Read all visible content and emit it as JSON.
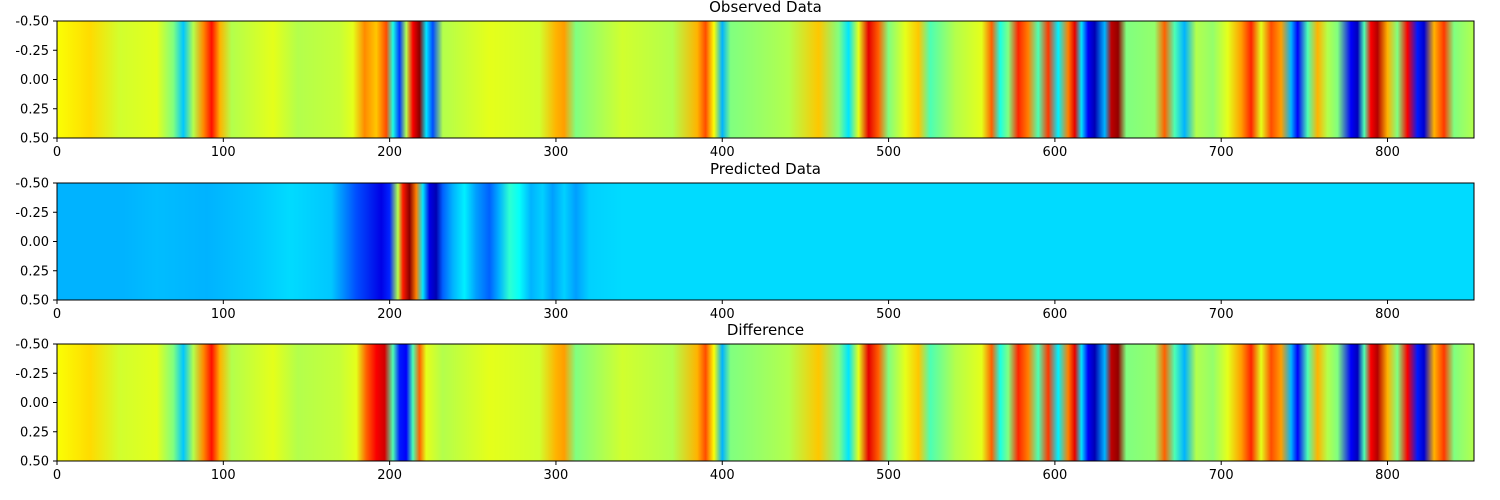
{
  "chart_data": [
    {
      "type": "heatmap",
      "title": "Observed Data",
      "colormap": "jet",
      "xlim": [
        0,
        852
      ],
      "ylim": [
        0.5,
        -0.5
      ],
      "xticks": [
        0,
        100,
        200,
        300,
        400,
        500,
        600,
        700,
        800
      ],
      "yticks": [
        -0.5,
        -0.25,
        0.0,
        0.25,
        0.5
      ],
      "ytick_labels": [
        "-0.50",
        "-0.25",
        "0.00",
        "0.25",
        "0.50"
      ],
      "bands": [
        [
          0,
          0.62
        ],
        [
          20,
          0.66
        ],
        [
          38,
          0.58
        ],
        [
          60,
          0.6
        ],
        [
          70,
          0.5
        ],
        [
          76,
          0.32
        ],
        [
          82,
          0.55
        ],
        [
          88,
          0.74
        ],
        [
          93,
          0.86
        ],
        [
          98,
          0.7
        ],
        [
          105,
          0.55
        ],
        [
          130,
          0.6
        ],
        [
          145,
          0.55
        ],
        [
          170,
          0.57
        ],
        [
          178,
          0.6
        ],
        [
          185,
          0.74
        ],
        [
          192,
          0.68
        ],
        [
          198,
          0.8
        ],
        [
          202,
          0.4
        ],
        [
          206,
          0.18
        ],
        [
          210,
          0.55
        ],
        [
          214,
          0.88
        ],
        [
          218,
          0.99
        ],
        [
          222,
          0.35
        ],
        [
          226,
          0.2
        ],
        [
          232,
          0.55
        ],
        [
          260,
          0.6
        ],
        [
          290,
          0.58
        ],
        [
          300,
          0.7
        ],
        [
          305,
          0.72
        ],
        [
          312,
          0.5
        ],
        [
          340,
          0.58
        ],
        [
          370,
          0.55
        ],
        [
          385,
          0.7
        ],
        [
          390,
          0.8
        ],
        [
          395,
          0.62
        ],
        [
          400,
          0.3
        ],
        [
          405,
          0.5
        ],
        [
          440,
          0.55
        ],
        [
          458,
          0.68
        ],
        [
          470,
          0.5
        ],
        [
          476,
          0.35
        ],
        [
          482,
          0.6
        ],
        [
          488,
          0.9
        ],
        [
          494,
          0.78
        ],
        [
          500,
          0.5
        ],
        [
          510,
          0.6
        ],
        [
          518,
          0.68
        ],
        [
          525,
          0.45
        ],
        [
          540,
          0.55
        ],
        [
          556,
          0.6
        ],
        [
          562,
          0.78
        ],
        [
          567,
          0.4
        ],
        [
          572,
          0.5
        ],
        [
          578,
          0.84
        ],
        [
          584,
          0.75
        ],
        [
          590,
          0.45
        ],
        [
          596,
          0.82
        ],
        [
          602,
          0.36
        ],
        [
          608,
          0.75
        ],
        [
          612,
          0.9
        ],
        [
          616,
          0.35
        ],
        [
          620,
          0.12
        ],
        [
          624,
          0.05
        ],
        [
          630,
          0.3
        ],
        [
          634,
          0.94
        ],
        [
          638,
          0.98
        ],
        [
          643,
          0.5
        ],
        [
          660,
          0.52
        ],
        [
          666,
          0.78
        ],
        [
          672,
          0.45
        ],
        [
          678,
          0.3
        ],
        [
          685,
          0.55
        ],
        [
          695,
          0.52
        ],
        [
          704,
          0.6
        ],
        [
          712,
          0.72
        ],
        [
          718,
          0.84
        ],
        [
          724,
          0.6
        ],
        [
          730,
          0.8
        ],
        [
          736,
          0.72
        ],
        [
          742,
          0.3
        ],
        [
          746,
          0.12
        ],
        [
          752,
          0.45
        ],
        [
          758,
          0.7
        ],
        [
          764,
          0.55
        ],
        [
          770,
          0.5
        ],
        [
          778,
          0.12
        ],
        [
          782,
          0.06
        ],
        [
          786,
          0.45
        ],
        [
          790,
          0.88
        ],
        [
          794,
          0.95
        ],
        [
          800,
          0.7
        ],
        [
          806,
          0.5
        ],
        [
          812,
          0.88
        ],
        [
          818,
          0.15
        ],
        [
          822,
          0.08
        ],
        [
          828,
          0.7
        ],
        [
          834,
          0.82
        ],
        [
          840,
          0.5
        ],
        [
          852,
          0.55
        ]
      ]
    },
    {
      "type": "heatmap",
      "title": "Predicted Data",
      "colormap": "jet",
      "xlim": [
        0,
        852
      ],
      "ylim": [
        0.5,
        -0.5
      ],
      "xticks": [
        0,
        100,
        200,
        300,
        400,
        500,
        600,
        700,
        800
      ],
      "yticks": [
        -0.5,
        -0.25,
        0.0,
        0.25,
        0.5
      ],
      "ytick_labels": [
        "-0.50",
        "-0.25",
        "0.00",
        "0.25",
        "0.50"
      ],
      "bands": [
        [
          0,
          0.3
        ],
        [
          40,
          0.3
        ],
        [
          60,
          0.31
        ],
        [
          90,
          0.3
        ],
        [
          120,
          0.32
        ],
        [
          140,
          0.34
        ],
        [
          165,
          0.32
        ],
        [
          180,
          0.2
        ],
        [
          195,
          0.1
        ],
        [
          200,
          0.16
        ],
        [
          205,
          0.55
        ],
        [
          208,
          0.85
        ],
        [
          212,
          0.99
        ],
        [
          216,
          0.75
        ],
        [
          220,
          0.35
        ],
        [
          224,
          0.1
        ],
        [
          228,
          0.05
        ],
        [
          232,
          0.22
        ],
        [
          238,
          0.3
        ],
        [
          245,
          0.36
        ],
        [
          252,
          0.28
        ],
        [
          260,
          0.22
        ],
        [
          266,
          0.3
        ],
        [
          272,
          0.42
        ],
        [
          278,
          0.38
        ],
        [
          285,
          0.3
        ],
        [
          292,
          0.33
        ],
        [
          298,
          0.28
        ],
        [
          305,
          0.33
        ],
        [
          312,
          0.28
        ],
        [
          320,
          0.33
        ],
        [
          340,
          0.34
        ],
        [
          852,
          0.34
        ]
      ]
    },
    {
      "type": "heatmap",
      "title": "Difference",
      "colormap": "jet",
      "xlim": [
        0,
        852
      ],
      "ylim": [
        0.5,
        -0.5
      ],
      "xticks": [
        0,
        100,
        200,
        300,
        400,
        500,
        600,
        700,
        800
      ],
      "yticks": [
        -0.5,
        -0.25,
        0.0,
        0.25,
        0.5
      ],
      "ytick_labels": [
        "-0.50",
        "-0.25",
        "0.00",
        "0.25",
        "0.50"
      ],
      "bands": [
        [
          0,
          0.62
        ],
        [
          20,
          0.66
        ],
        [
          38,
          0.58
        ],
        [
          60,
          0.6
        ],
        [
          70,
          0.5
        ],
        [
          76,
          0.32
        ],
        [
          82,
          0.55
        ],
        [
          88,
          0.74
        ],
        [
          93,
          0.86
        ],
        [
          98,
          0.7
        ],
        [
          105,
          0.55
        ],
        [
          130,
          0.6
        ],
        [
          145,
          0.55
        ],
        [
          170,
          0.57
        ],
        [
          180,
          0.6
        ],
        [
          186,
          0.78
        ],
        [
          192,
          0.88
        ],
        [
          197,
          0.92
        ],
        [
          202,
          0.45
        ],
        [
          206,
          0.15
        ],
        [
          210,
          0.12
        ],
        [
          214,
          0.45
        ],
        [
          218,
          0.78
        ],
        [
          222,
          0.6
        ],
        [
          232,
          0.55
        ],
        [
          260,
          0.6
        ],
        [
          290,
          0.58
        ],
        [
          300,
          0.7
        ],
        [
          305,
          0.72
        ],
        [
          312,
          0.5
        ],
        [
          340,
          0.58
        ],
        [
          370,
          0.55
        ],
        [
          385,
          0.7
        ],
        [
          390,
          0.8
        ],
        [
          395,
          0.62
        ],
        [
          400,
          0.3
        ],
        [
          405,
          0.5
        ],
        [
          440,
          0.55
        ],
        [
          458,
          0.68
        ],
        [
          470,
          0.5
        ],
        [
          476,
          0.35
        ],
        [
          482,
          0.6
        ],
        [
          488,
          0.9
        ],
        [
          494,
          0.78
        ],
        [
          500,
          0.5
        ],
        [
          510,
          0.6
        ],
        [
          518,
          0.68
        ],
        [
          525,
          0.45
        ],
        [
          540,
          0.55
        ],
        [
          556,
          0.6
        ],
        [
          562,
          0.78
        ],
        [
          567,
          0.4
        ],
        [
          572,
          0.5
        ],
        [
          578,
          0.84
        ],
        [
          584,
          0.75
        ],
        [
          590,
          0.45
        ],
        [
          596,
          0.82
        ],
        [
          602,
          0.36
        ],
        [
          608,
          0.75
        ],
        [
          612,
          0.9
        ],
        [
          616,
          0.35
        ],
        [
          620,
          0.12
        ],
        [
          624,
          0.05
        ],
        [
          630,
          0.3
        ],
        [
          634,
          0.94
        ],
        [
          638,
          0.98
        ],
        [
          643,
          0.5
        ],
        [
          660,
          0.52
        ],
        [
          666,
          0.78
        ],
        [
          672,
          0.45
        ],
        [
          678,
          0.3
        ],
        [
          685,
          0.55
        ],
        [
          695,
          0.52
        ],
        [
          704,
          0.6
        ],
        [
          712,
          0.72
        ],
        [
          718,
          0.84
        ],
        [
          724,
          0.6
        ],
        [
          730,
          0.8
        ],
        [
          736,
          0.72
        ],
        [
          742,
          0.3
        ],
        [
          746,
          0.12
        ],
        [
          752,
          0.45
        ],
        [
          758,
          0.7
        ],
        [
          764,
          0.55
        ],
        [
          770,
          0.5
        ],
        [
          778,
          0.12
        ],
        [
          782,
          0.06
        ],
        [
          786,
          0.45
        ],
        [
          790,
          0.88
        ],
        [
          794,
          0.95
        ],
        [
          800,
          0.7
        ],
        [
          806,
          0.5
        ],
        [
          812,
          0.88
        ],
        [
          818,
          0.15
        ],
        [
          822,
          0.08
        ],
        [
          828,
          0.7
        ],
        [
          834,
          0.82
        ],
        [
          840,
          0.5
        ],
        [
          852,
          0.55
        ]
      ]
    }
  ]
}
